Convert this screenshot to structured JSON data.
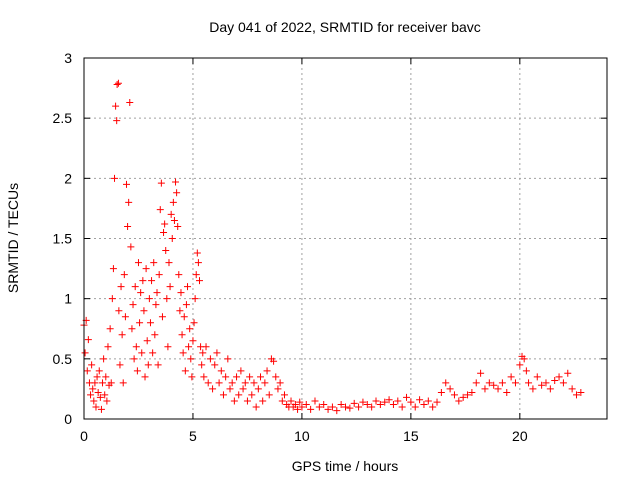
{
  "chart_data": {
    "type": "scatter",
    "title": "Day 041 of 2022, SRMTID for receiver bavc",
    "xlabel": "GPS time / hours",
    "ylabel": "SRMTID / TECUs",
    "xlim": [
      0,
      24
    ],
    "ylim": [
      0,
      3
    ],
    "xticks": [
      0,
      5,
      10,
      15,
      20
    ],
    "xtick_labels": [
      "0",
      "5",
      "10",
      "15",
      "20"
    ],
    "yticks": [
      0,
      0.5,
      1,
      1.5,
      2,
      2.5,
      3
    ],
    "ytick_labels": [
      "0",
      "0.5",
      "1",
      "1.5",
      "2",
      "2.5",
      "3"
    ],
    "grid": true,
    "marker": "+",
    "series": [
      {
        "name": "SRMTID",
        "color": "#ff0000",
        "points": [
          [
            0.0,
            0.78
          ],
          [
            0.05,
            0.55
          ],
          [
            0.1,
            0.82
          ],
          [
            0.15,
            0.4
          ],
          [
            0.2,
            0.66
          ],
          [
            0.25,
            0.3
          ],
          [
            0.3,
            0.2
          ],
          [
            0.35,
            0.45
          ],
          [
            0.4,
            0.25
          ],
          [
            0.45,
            0.15
          ],
          [
            0.5,
            0.3
          ],
          [
            0.55,
            0.1
          ],
          [
            0.6,
            0.35
          ],
          [
            0.65,
            0.22
          ],
          [
            0.7,
            0.4
          ],
          [
            0.75,
            0.18
          ],
          [
            0.8,
            0.08
          ],
          [
            0.85,
            0.3
          ],
          [
            0.9,
            0.5
          ],
          [
            0.95,
            0.2
          ],
          [
            1.0,
            0.35
          ],
          [
            1.05,
            0.15
          ],
          [
            1.1,
            0.6
          ],
          [
            1.15,
            0.28
          ],
          [
            1.2,
            0.75
          ],
          [
            1.25,
            0.3
          ],
          [
            1.3,
            1.0
          ],
          [
            1.35,
            1.25
          ],
          [
            1.4,
            2.0
          ],
          [
            1.45,
            2.6
          ],
          [
            1.5,
            2.48
          ],
          [
            1.52,
            2.78
          ],
          [
            1.58,
            2.79
          ],
          [
            1.6,
            0.9
          ],
          [
            1.65,
            0.45
          ],
          [
            1.7,
            1.1
          ],
          [
            1.75,
            0.7
          ],
          [
            1.8,
            0.3
          ],
          [
            1.85,
            1.2
          ],
          [
            1.9,
            0.85
          ],
          [
            1.95,
            1.95
          ],
          [
            2.0,
            1.6
          ],
          [
            2.05,
            1.8
          ],
          [
            2.1,
            2.63
          ],
          [
            2.15,
            1.43
          ],
          [
            2.2,
            0.75
          ],
          [
            2.25,
            0.95
          ],
          [
            2.3,
            0.5
          ],
          [
            2.35,
            1.1
          ],
          [
            2.4,
            0.6
          ],
          [
            2.45,
            0.4
          ],
          [
            2.5,
            1.3
          ],
          [
            2.55,
            0.8
          ],
          [
            2.6,
            1.05
          ],
          [
            2.65,
            0.55
          ],
          [
            2.7,
            1.15
          ],
          [
            2.75,
            0.9
          ],
          [
            2.8,
            0.35
          ],
          [
            2.85,
            1.25
          ],
          [
            2.9,
            0.65
          ],
          [
            2.95,
            0.45
          ],
          [
            3.0,
            1.0
          ],
          [
            3.05,
            0.8
          ],
          [
            3.1,
            1.15
          ],
          [
            3.15,
            0.55
          ],
          [
            3.2,
            1.3
          ],
          [
            3.25,
            0.7
          ],
          [
            3.3,
            0.95
          ],
          [
            3.35,
            1.05
          ],
          [
            3.4,
            0.45
          ],
          [
            3.45,
            1.2
          ],
          [
            3.5,
            1.74
          ],
          [
            3.55,
            1.96
          ],
          [
            3.6,
            0.85
          ],
          [
            3.65,
            1.55
          ],
          [
            3.7,
            1.62
          ],
          [
            3.75,
            1.4
          ],
          [
            3.8,
            1.0
          ],
          [
            3.85,
            0.6
          ],
          [
            3.9,
            1.3
          ],
          [
            3.95,
            1.1
          ],
          [
            4.0,
            1.7
          ],
          [
            4.05,
            1.5
          ],
          [
            4.1,
            1.8
          ],
          [
            4.15,
            1.65
          ],
          [
            4.2,
            1.97
          ],
          [
            4.25,
            1.88
          ],
          [
            4.3,
            1.6
          ],
          [
            4.35,
            1.2
          ],
          [
            4.4,
            0.9
          ],
          [
            4.45,
            1.05
          ],
          [
            4.5,
            0.7
          ],
          [
            4.55,
            0.55
          ],
          [
            4.6,
            0.85
          ],
          [
            4.65,
            0.4
          ],
          [
            4.7,
            0.95
          ],
          [
            4.75,
            1.1
          ],
          [
            4.8,
            0.6
          ],
          [
            4.85,
            0.75
          ],
          [
            4.9,
            0.5
          ],
          [
            4.95,
            0.35
          ],
          [
            5.0,
            0.65
          ],
          [
            5.05,
            0.8
          ],
          [
            5.1,
            1.0
          ],
          [
            5.15,
            1.2
          ],
          [
            5.2,
            1.38
          ],
          [
            5.25,
            1.3
          ],
          [
            5.3,
            1.15
          ],
          [
            5.35,
            0.6
          ],
          [
            5.4,
            0.45
          ],
          [
            5.45,
            0.55
          ],
          [
            5.5,
            0.35
          ],
          [
            5.6,
            0.6
          ],
          [
            5.7,
            0.3
          ],
          [
            5.8,
            0.5
          ],
          [
            5.9,
            0.25
          ],
          [
            6.0,
            0.45
          ],
          [
            6.1,
            0.55
          ],
          [
            6.2,
            0.3
          ],
          [
            6.3,
            0.4
          ],
          [
            6.4,
            0.2
          ],
          [
            6.5,
            0.35
          ],
          [
            6.6,
            0.5
          ],
          [
            6.7,
            0.25
          ],
          [
            6.8,
            0.3
          ],
          [
            6.9,
            0.15
          ],
          [
            7.0,
            0.35
          ],
          [
            7.1,
            0.2
          ],
          [
            7.2,
            0.4
          ],
          [
            7.3,
            0.25
          ],
          [
            7.4,
            0.3
          ],
          [
            7.5,
            0.15
          ],
          [
            7.6,
            0.35
          ],
          [
            7.7,
            0.2
          ],
          [
            7.8,
            0.3
          ],
          [
            7.9,
            0.1
          ],
          [
            8.0,
            0.25
          ],
          [
            8.1,
            0.35
          ],
          [
            8.2,
            0.15
          ],
          [
            8.3,
            0.3
          ],
          [
            8.4,
            0.4
          ],
          [
            8.5,
            0.2
          ],
          [
            8.6,
            0.5
          ],
          [
            8.7,
            0.48
          ],
          [
            8.8,
            0.35
          ],
          [
            8.9,
            0.25
          ],
          [
            9.0,
            0.3
          ],
          [
            9.1,
            0.15
          ],
          [
            9.2,
            0.2
          ],
          [
            9.3,
            0.12
          ],
          [
            9.4,
            0.1
          ],
          [
            9.5,
            0.15
          ],
          [
            9.6,
            0.1
          ],
          [
            9.7,
            0.12
          ],
          [
            9.8,
            0.08
          ],
          [
            9.9,
            0.14
          ],
          [
            10.0,
            0.1
          ],
          [
            10.2,
            0.12
          ],
          [
            10.4,
            0.08
          ],
          [
            10.6,
            0.15
          ],
          [
            10.8,
            0.1
          ],
          [
            11.0,
            0.12
          ],
          [
            11.2,
            0.08
          ],
          [
            11.4,
            0.1
          ],
          [
            11.6,
            0.07
          ],
          [
            11.8,
            0.12
          ],
          [
            12.0,
            0.1
          ],
          [
            12.2,
            0.09
          ],
          [
            12.4,
            0.13
          ],
          [
            12.6,
            0.1
          ],
          [
            12.8,
            0.14
          ],
          [
            13.0,
            0.12
          ],
          [
            13.2,
            0.1
          ],
          [
            13.4,
            0.15
          ],
          [
            13.6,
            0.12
          ],
          [
            13.8,
            0.14
          ],
          [
            14.0,
            0.16
          ],
          [
            14.2,
            0.12
          ],
          [
            14.4,
            0.15
          ],
          [
            14.6,
            0.1
          ],
          [
            14.8,
            0.18
          ],
          [
            15.0,
            0.14
          ],
          [
            15.2,
            0.1
          ],
          [
            15.4,
            0.16
          ],
          [
            15.6,
            0.12
          ],
          [
            15.8,
            0.15
          ],
          [
            16.0,
            0.1
          ],
          [
            16.2,
            0.14
          ],
          [
            16.4,
            0.22
          ],
          [
            16.6,
            0.3
          ],
          [
            16.8,
            0.25
          ],
          [
            17.0,
            0.2
          ],
          [
            17.2,
            0.15
          ],
          [
            17.4,
            0.18
          ],
          [
            17.6,
            0.2
          ],
          [
            17.8,
            0.22
          ],
          [
            18.0,
            0.3
          ],
          [
            18.2,
            0.38
          ],
          [
            18.4,
            0.25
          ],
          [
            18.6,
            0.3
          ],
          [
            18.8,
            0.28
          ],
          [
            19.0,
            0.25
          ],
          [
            19.2,
            0.3
          ],
          [
            19.4,
            0.22
          ],
          [
            19.6,
            0.35
          ],
          [
            19.8,
            0.3
          ],
          [
            20.0,
            0.45
          ],
          [
            20.1,
            0.52
          ],
          [
            20.2,
            0.5
          ],
          [
            20.3,
            0.4
          ],
          [
            20.4,
            0.3
          ],
          [
            20.6,
            0.25
          ],
          [
            20.8,
            0.35
          ],
          [
            21.0,
            0.28
          ],
          [
            21.2,
            0.3
          ],
          [
            21.4,
            0.25
          ],
          [
            21.6,
            0.32
          ],
          [
            21.8,
            0.35
          ],
          [
            22.0,
            0.3
          ],
          [
            22.2,
            0.38
          ],
          [
            22.4,
            0.25
          ],
          [
            22.6,
            0.2
          ],
          [
            22.8,
            0.22
          ]
        ]
      }
    ]
  }
}
